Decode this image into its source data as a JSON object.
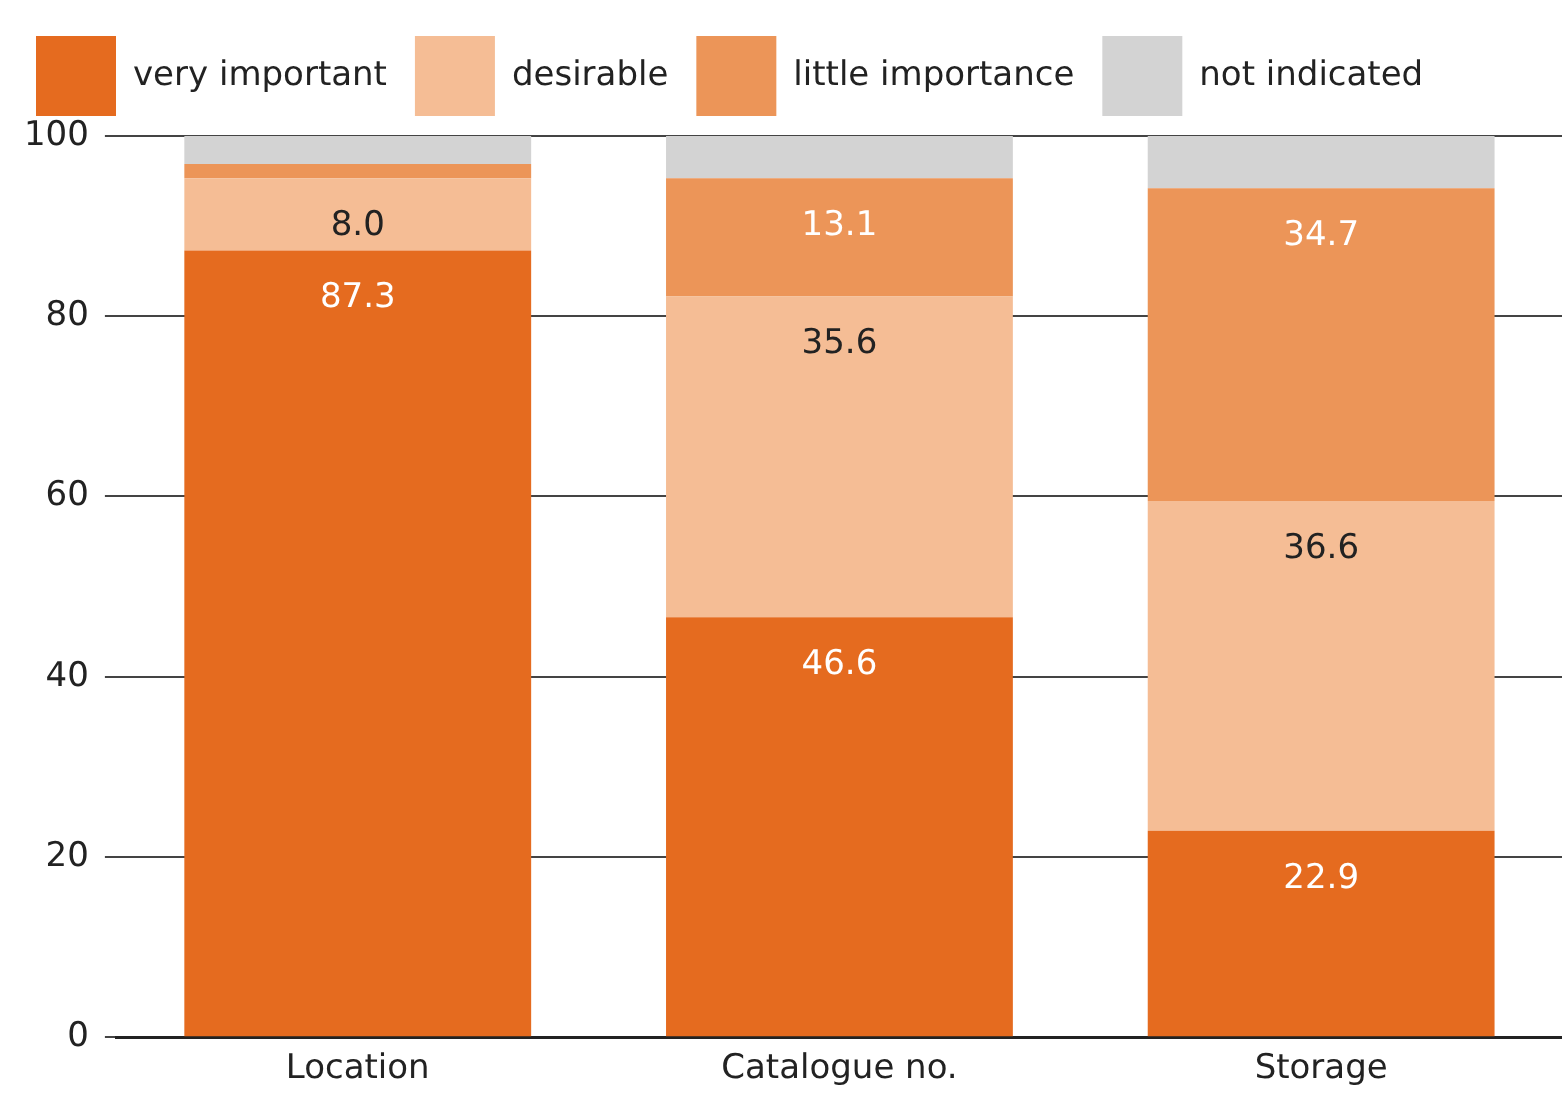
{
  "chart_data": {
    "type": "bar",
    "stacked": true,
    "categories": [
      "Location",
      "Catalogue no.",
      "Storage"
    ],
    "series": [
      {
        "name": "very important",
        "color": "#e56b1f",
        "values": [
          87.3,
          46.6,
          22.9
        ],
        "value_labels": [
          "87.3",
          "46.6",
          "22.9"
        ]
      },
      {
        "name": "desirable",
        "color": "#f5bd95",
        "values": [
          8.0,
          35.6,
          36.6
        ],
        "value_labels": [
          "8.0",
          "35.6",
          "36.6"
        ]
      },
      {
        "name": "little importance",
        "color": "#ec9558",
        "values": [
          1.6,
          13.1,
          34.7
        ],
        "value_labels": [
          null,
          "13.1",
          "34.7"
        ]
      },
      {
        "name": "not indicated",
        "color": "#d3d3d3",
        "values": [
          3.1,
          4.7,
          5.8
        ],
        "value_labels": [
          null,
          null,
          null
        ]
      }
    ],
    "ylim": [
      0,
      100
    ],
    "yticks": [
      0,
      20,
      40,
      60,
      80,
      100
    ],
    "grid": "y",
    "legend": "top left"
  }
}
